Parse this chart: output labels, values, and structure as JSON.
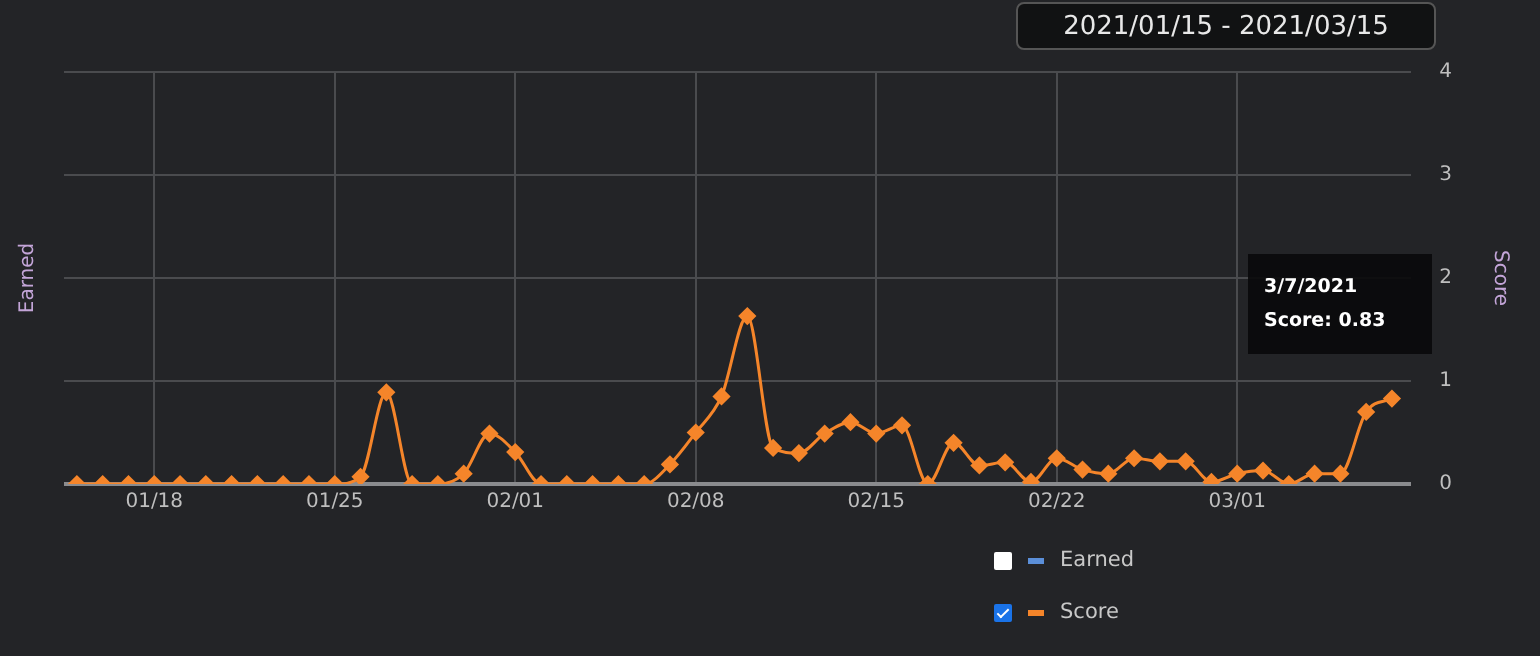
{
  "chart_data": {
    "type": "line",
    "title": "2021/01/15 - 2021/03/15",
    "ylabel": "Earned",
    "y2label": "Score",
    "x": [
      "2021-01-15",
      "2021-01-16",
      "2021-01-17",
      "2021-01-18",
      "2021-01-19",
      "2021-01-20",
      "2021-01-21",
      "2021-01-22",
      "2021-01-23",
      "2021-01-24",
      "2021-01-25",
      "2021-01-26",
      "2021-01-27",
      "2021-01-28",
      "2021-01-29",
      "2021-01-30",
      "2021-01-31",
      "2021-02-01",
      "2021-02-02",
      "2021-02-03",
      "2021-02-04",
      "2021-02-05",
      "2021-02-06",
      "2021-02-07",
      "2021-02-08",
      "2021-02-09",
      "2021-02-10",
      "2021-02-11",
      "2021-02-12",
      "2021-02-13",
      "2021-02-14",
      "2021-02-15",
      "2021-02-16",
      "2021-02-17",
      "2021-02-18",
      "2021-02-19",
      "2021-02-20",
      "2021-02-21",
      "2021-02-22",
      "2021-02-23",
      "2021-02-24",
      "2021-02-25",
      "2021-02-26",
      "2021-02-27",
      "2021-02-28",
      "2021-03-01",
      "2021-03-02",
      "2021-03-03",
      "2021-03-04",
      "2021-03-05",
      "2021-03-06",
      "2021-03-07"
    ],
    "series": [
      {
        "name": "Earned",
        "color": "#5b8fd9",
        "values": [
          null,
          null,
          null,
          null,
          null,
          null,
          null,
          null,
          null,
          null,
          null,
          null,
          null,
          null,
          null,
          null,
          null,
          null,
          null,
          null,
          null,
          null,
          null,
          null,
          null,
          null,
          null,
          null,
          null,
          null,
          null,
          null,
          null,
          null,
          null,
          null,
          null,
          null,
          null,
          null,
          null,
          null,
          null,
          null,
          null,
          null,
          null,
          null,
          null,
          null,
          null,
          null
        ]
      },
      {
        "name": "Score",
        "color": "#f5852a",
        "axis": "y2",
        "values": [
          0,
          0,
          0,
          0,
          0,
          0,
          0,
          0,
          0,
          0,
          0,
          0.07,
          0.89,
          0,
          0,
          0.1,
          0.49,
          0.31,
          0,
          0,
          0,
          0,
          0,
          0.19,
          0.5,
          0.85,
          1.63,
          0.35,
          0.3,
          0.49,
          0.6,
          0.49,
          0.57,
          0,
          0.4,
          0.18,
          0.21,
          0.02,
          0.25,
          0.14,
          0.1,
          0.25,
          0.22,
          0.22,
          0.02,
          0.1,
          0.13,
          0,
          0.1,
          0.1,
          0.7,
          0.83
        ]
      }
    ],
    "xlim": [
      "2021-01-14T12:00",
      "2021-03-07T18:00"
    ],
    "xticks": [
      {
        "value": "2021-01-18",
        "label": "01/18"
      },
      {
        "value": "2021-01-25",
        "label": "01/25"
      },
      {
        "value": "2021-02-01",
        "label": "02/01"
      },
      {
        "value": "2021-02-08",
        "label": "02/08"
      },
      {
        "value": "2021-02-15",
        "label": "02/15"
      },
      {
        "value": "2021-02-22",
        "label": "02/22"
      },
      {
        "value": "2021-03-01",
        "label": "03/01"
      }
    ],
    "y2lim": [
      0,
      4
    ],
    "y2ticks": [
      0,
      1,
      2,
      3,
      4
    ],
    "annotations": [
      "3/7/2021\nScore: 0.83"
    ],
    "grid": true,
    "legend": "bottom right",
    "marker": "diamond",
    "line_style": "solid"
  }
}
